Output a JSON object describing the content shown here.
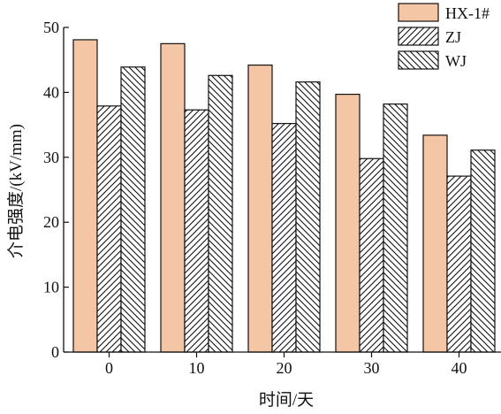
{
  "chart_data": {
    "type": "bar",
    "title": "",
    "xlabel": "时间/天",
    "ylabel": "介电强度/(kV/mm)",
    "categories": [
      "0",
      "10",
      "20",
      "30",
      "40"
    ],
    "ylim": [
      0,
      50
    ],
    "yticks": [
      "0",
      "10",
      "20",
      "30",
      "40",
      "50"
    ],
    "grid": false,
    "legend_position": "top-right",
    "series": [
      {
        "name": "HX-1#",
        "values": [
          48.1,
          47.5,
          44.2,
          39.7,
          33.4
        ],
        "fill": "#f5c6a5",
        "pattern": "solid"
      },
      {
        "name": "ZJ",
        "values": [
          37.9,
          37.3,
          35.2,
          29.8,
          27.1
        ],
        "fill": "#ffffff",
        "pattern": "forward-diagonal"
      },
      {
        "name": "WJ",
        "values": [
          43.9,
          42.6,
          41.6,
          38.2,
          31.1
        ],
        "fill": "#ffffff",
        "pattern": "back-diagonal"
      }
    ]
  }
}
